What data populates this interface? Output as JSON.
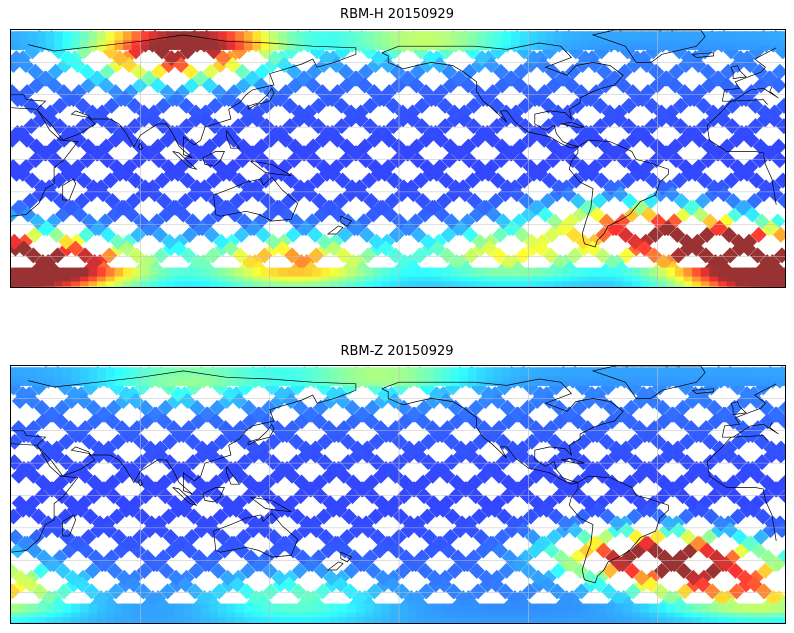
{
  "panels": [
    {
      "title": "RBM-H 20150929",
      "palette": "jet",
      "hotspots": [
        {
          "lon": 100,
          "lat": 75,
          "level": 0.85
        },
        {
          "lon": 95,
          "lat": 60,
          "level": 0.6
        },
        {
          "lon": 45,
          "lat": -62,
          "level": 0.78
        },
        {
          "lon": 150,
          "lat": -62,
          "level": 0.7
        },
        {
          "lon": -110,
          "lat": -58,
          "level": 0.55
        },
        {
          "lon": -15,
          "lat": -52,
          "level": 0.95
        },
        {
          "lon": -55,
          "lat": -40,
          "level": 0.7
        },
        {
          "lon": -150,
          "lat": 75,
          "level": 0.45
        },
        {
          "lon": 10,
          "lat": -70,
          "level": 0.9
        }
      ]
    },
    {
      "title": "RBM-Z 20150929",
      "palette": "jet",
      "hotspots": [
        {
          "lon": -30,
          "lat": -40,
          "level": 0.72
        },
        {
          "lon": -50,
          "lat": -35,
          "level": 0.65
        },
        {
          "lon": -10,
          "lat": -55,
          "level": 0.5
        },
        {
          "lon": 15,
          "lat": -60,
          "level": 0.42
        },
        {
          "lon": 100,
          "lat": 72,
          "level": 0.4
        },
        {
          "lon": 150,
          "lat": -62,
          "level": 0.38
        },
        {
          "lon": -170,
          "lat": 75,
          "level": 0.42
        }
      ]
    }
  ],
  "colors": {
    "background": "#ffffff",
    "grid": "#bfbfbf",
    "coast": "#000000"
  }
}
